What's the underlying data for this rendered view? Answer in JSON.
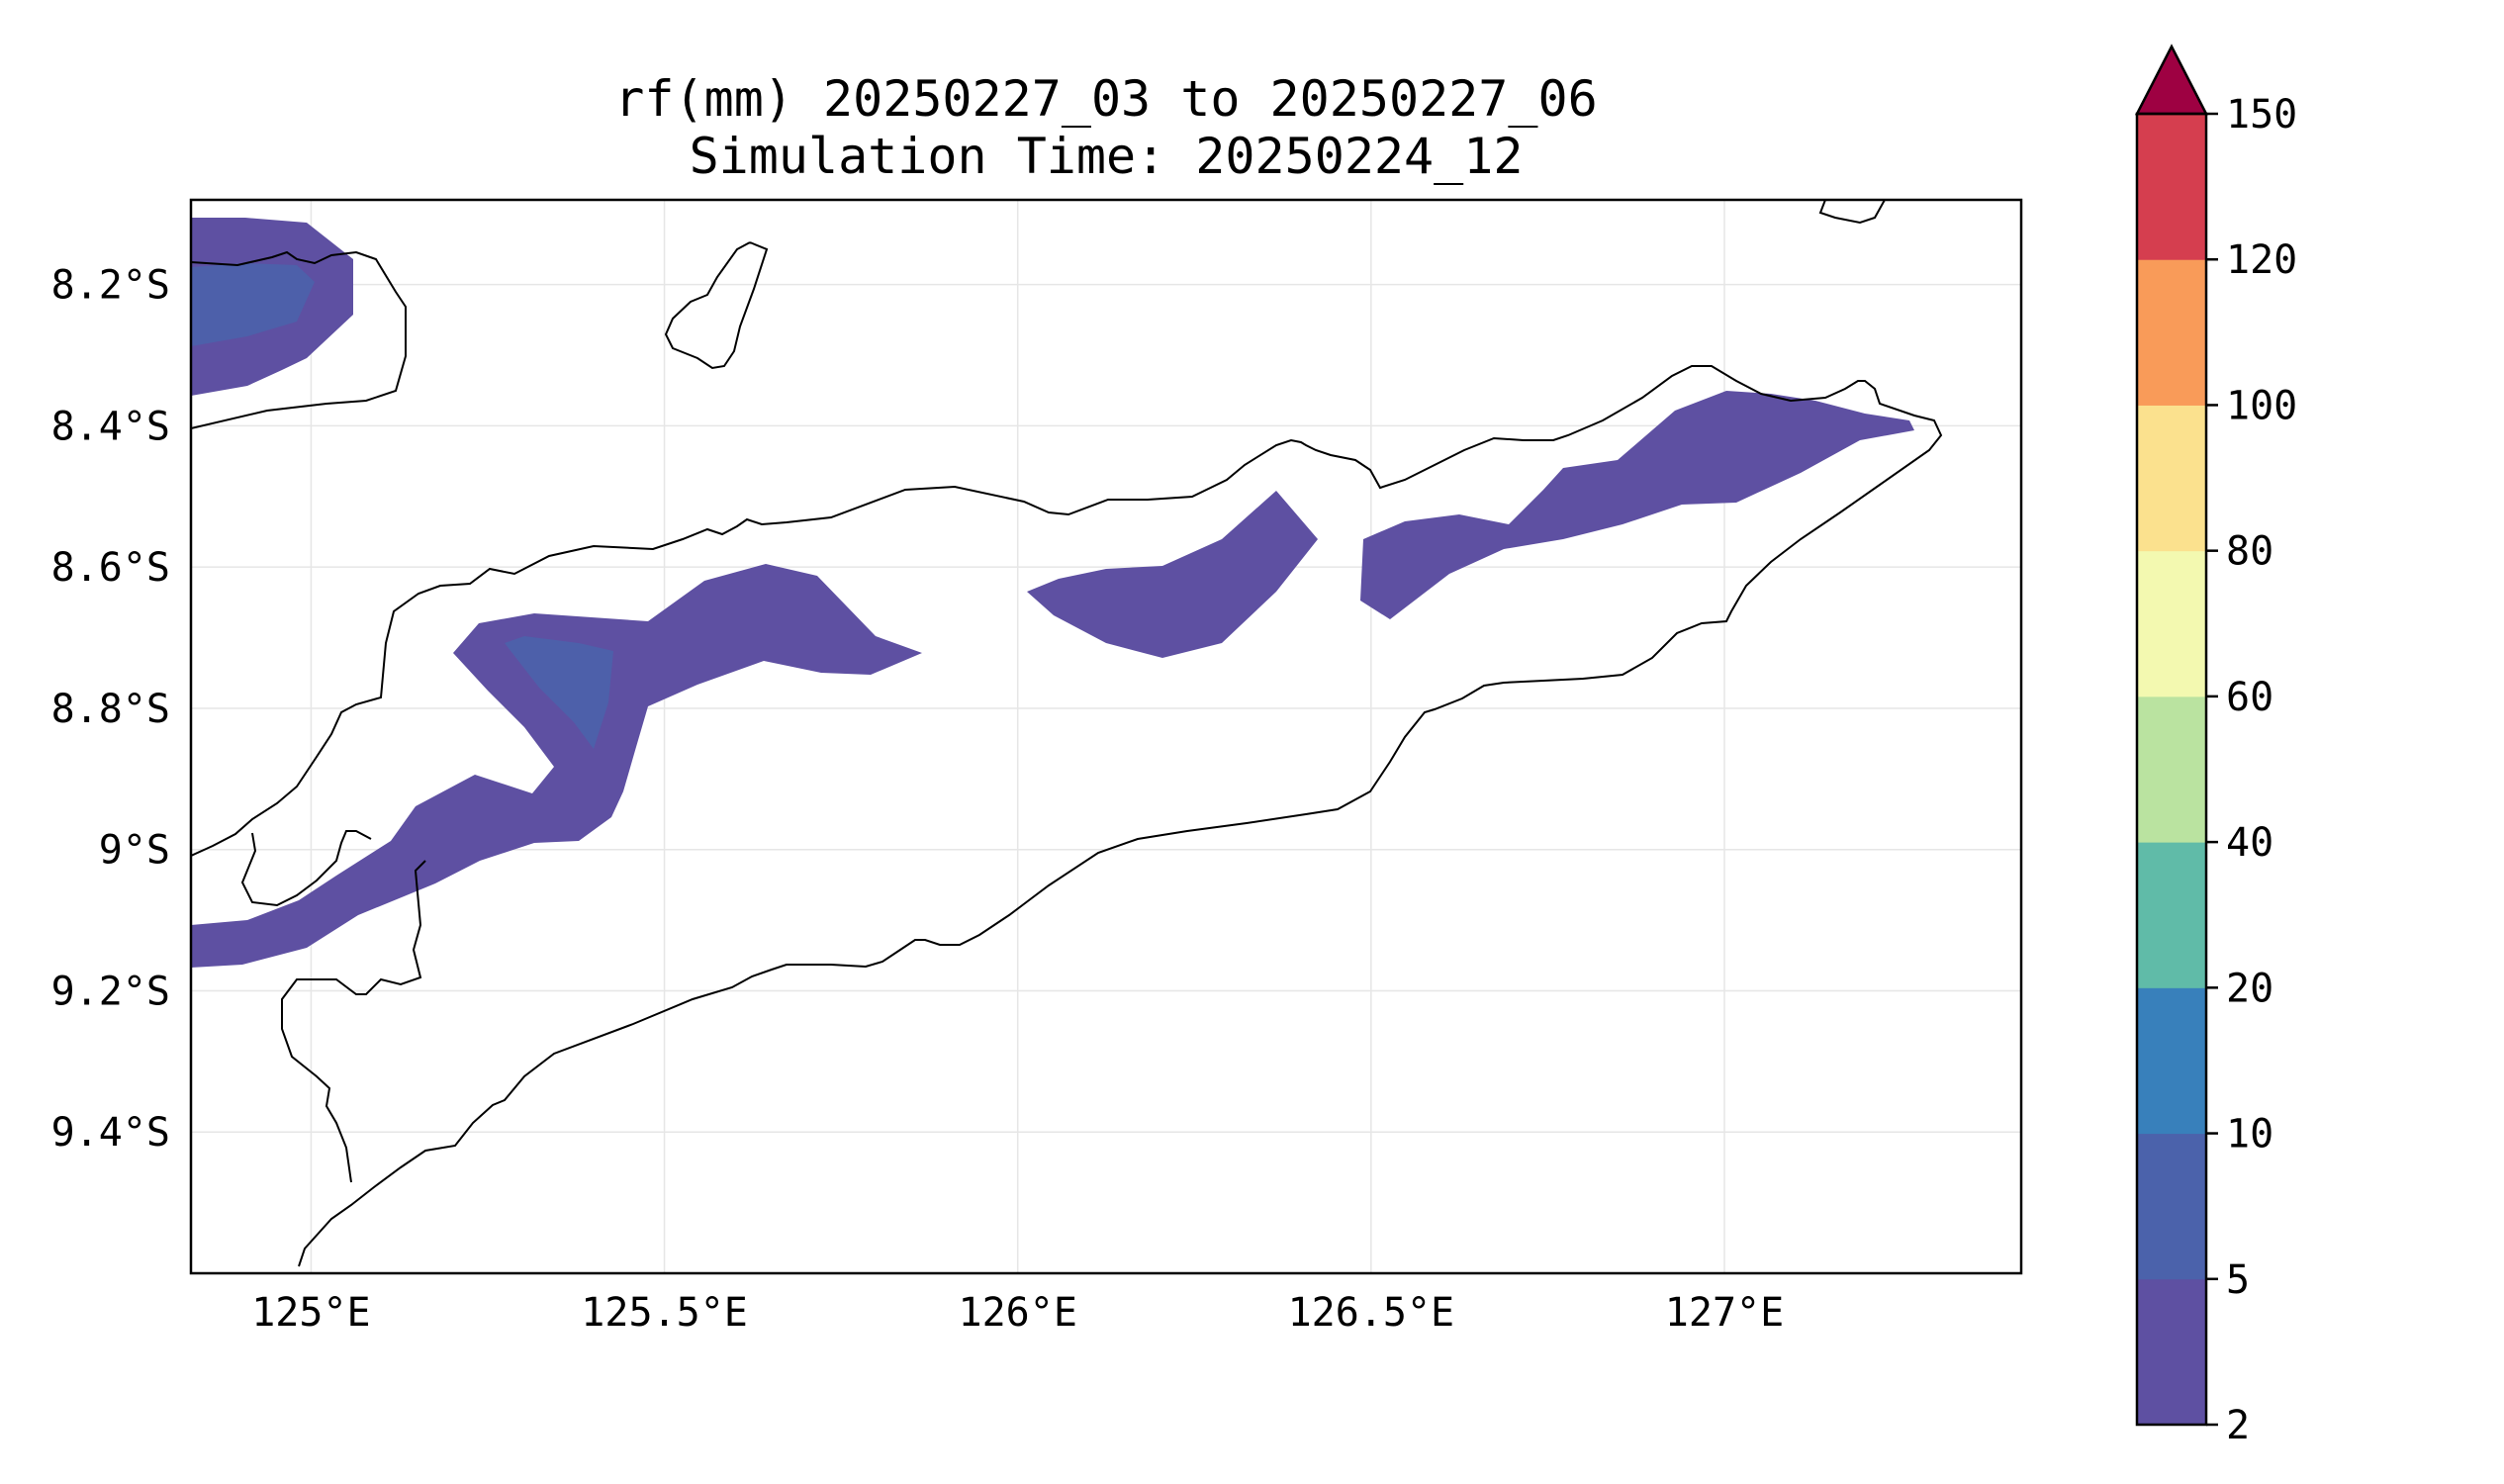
{
  "title": {
    "line1": "rf(mm) 20250227_03 to 20250227_06",
    "line2": "Simulation Time: 20250224_12"
  },
  "map": {
    "lon_range": [
      124.83,
      127.42
    ],
    "lat_range": [
      -9.6,
      -8.08
    ],
    "x_ticks": [
      {
        "value": 125.0,
        "label": "125°E"
      },
      {
        "value": 125.5,
        "label": "125.5°E"
      },
      {
        "value": 126.0,
        "label": "126°E"
      },
      {
        "value": 126.5,
        "label": "126.5°E"
      },
      {
        "value": 127.0,
        "label": "127°E"
      }
    ],
    "y_ticks": [
      {
        "value": -8.2,
        "label": "8.2°S"
      },
      {
        "value": -8.4,
        "label": "8.4°S"
      },
      {
        "value": -8.6,
        "label": "8.6°S"
      },
      {
        "value": -8.8,
        "label": "8.8°S"
      },
      {
        "value": -9.0,
        "label": "9°S"
      },
      {
        "value": -9.2,
        "label": "9.2°S"
      },
      {
        "value": -9.4,
        "label": "9.4°S"
      }
    ],
    "grid": true,
    "coastline_color": "#000000",
    "region_shown": "Timor-Leste / eastern Timor island"
  },
  "colorbar": {
    "levels": [
      "2",
      "5",
      "10",
      "20",
      "40",
      "60",
      "80",
      "100",
      "120",
      "150"
    ],
    "colors": [
      "#5e50a2",
      "#4b62ab",
      "#3880bb",
      "#60bba8",
      "#bae3a0",
      "#f3f9b0",
      "#fbe18e",
      "#f99b59",
      "#d53e4f"
    ],
    "extend_color": "#9e0142",
    "extend": "max"
  },
  "rainfall_areas": [
    {
      "name": "northwest-area",
      "level_bin": "2-5 mm",
      "color": "#5e50a2"
    },
    {
      "name": "northwest-core",
      "level_bin": "5-10 mm",
      "color": "#4b62ab"
    },
    {
      "name": "west-band",
      "level_bin": "2-5 mm",
      "color": "#5e50a2"
    },
    {
      "name": "west-band-core",
      "level_bin": "5-10 mm",
      "color": "#4b62ab"
    },
    {
      "name": "central-band",
      "level_bin": "2-5 mm",
      "color": "#5e50a2"
    },
    {
      "name": "east-band",
      "level_bin": "2-5 mm",
      "color": "#5e50a2"
    }
  ]
}
